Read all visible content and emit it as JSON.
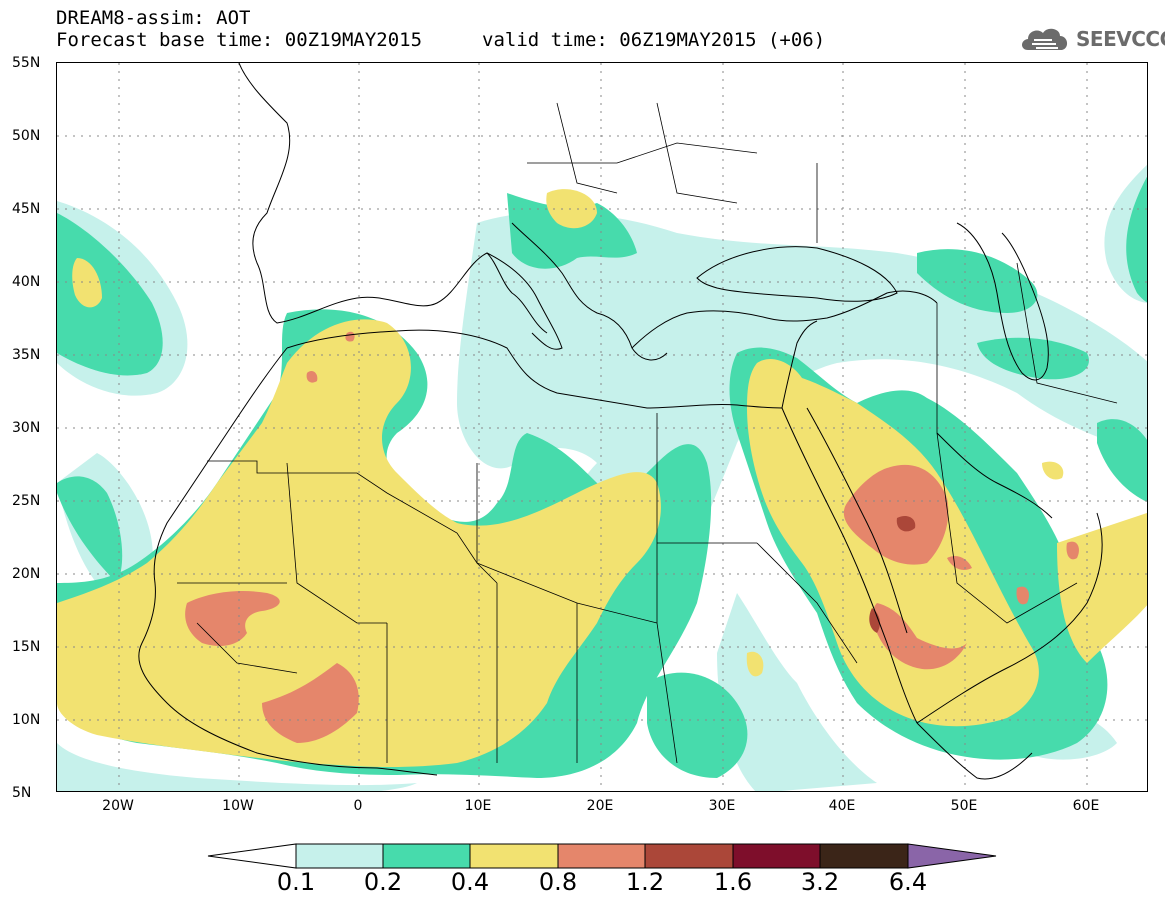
{
  "header": {
    "model": "DREAM8-assim: AOT",
    "base_time": "Forecast base time: 00Z19MAY2015",
    "valid_time": "valid time: 06Z19MAY2015 (+06)",
    "logo": "SEEVCCC"
  },
  "map": {
    "region": "North Africa / Mediterranean / Middle East",
    "lat_labels": [
      "55N",
      "50N",
      "45N",
      "40N",
      "35N",
      "30N",
      "25N",
      "20N",
      "15N",
      "10N",
      "5N"
    ],
    "lon_labels": [
      "20W",
      "10W",
      "0",
      "10E",
      "20E",
      "30E",
      "40E",
      "50E",
      "60E"
    ]
  },
  "colorbar": {
    "labels": [
      "0.1",
      "0.2",
      "0.4",
      "0.8",
      "1.2",
      "1.6",
      "3.2",
      "6.4"
    ],
    "colors": [
      "#ffffff",
      "#c6f1eb",
      "#47dbac",
      "#f2e271",
      "#e5866b",
      "#ab4739",
      "#7e0e2b",
      "#3b2518",
      "#8a65a8"
    ]
  }
}
